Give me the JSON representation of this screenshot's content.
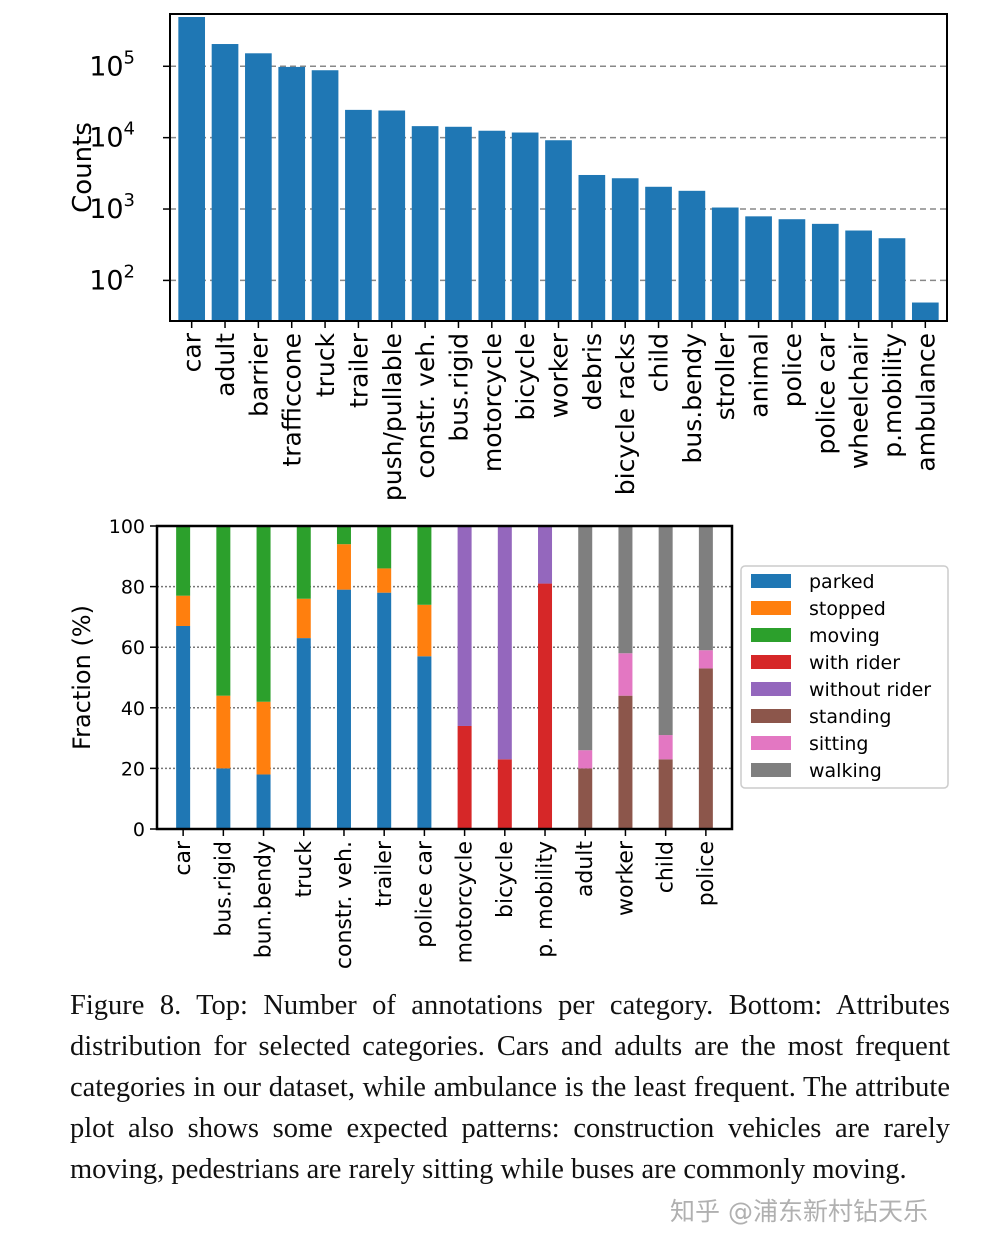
{
  "chart_data": [
    {
      "type": "bar",
      "yscale": "log",
      "ylabel": "Counts",
      "ylim": [
        27,
        540000
      ],
      "yticks": [
        {
          "value": 100,
          "base": "10",
          "exp": "2"
        },
        {
          "value": 1000,
          "base": "10",
          "exp": "3"
        },
        {
          "value": 10000,
          "base": "10",
          "exp": "4"
        },
        {
          "value": 100000,
          "base": "10",
          "exp": "5"
        }
      ],
      "grid": "horizontal dashed",
      "categories": [
        "car",
        "adult",
        "barrier",
        "trafficcone",
        "truck",
        "trailer",
        "push/pullable",
        "constr. veh.",
        "bus.rigid",
        "motorcycle",
        "bicycle",
        "worker",
        "debris",
        "bicycle racks",
        "child",
        "bus.bendy",
        "stroller",
        "animal",
        "police",
        "police car",
        "wheelchair",
        "p.mobility",
        "ambulance"
      ],
      "values": [
        490000,
        205000,
        152000,
        98000,
        88000,
        24500,
        24000,
        14500,
        14200,
        12500,
        11800,
        9200,
        3000,
        2700,
        2050,
        1800,
        1050,
        790,
        720,
        620,
        500,
        390,
        49
      ],
      "color": "#1f77b4"
    },
    {
      "type": "stacked_bar",
      "ylabel": "Fraction (%)",
      "ylim": [
        0,
        100
      ],
      "yticks": [
        "0",
        "20",
        "40",
        "60",
        "80",
        "100"
      ],
      "grid": "horizontal dotted",
      "categories": [
        "car",
        "bus.rigid",
        "bun.bendy",
        "truck",
        "constr. veh.",
        "trailer",
        "police car",
        "motorcycle",
        "bicycle",
        "p. mobility",
        "adult",
        "worker",
        "child",
        "police"
      ],
      "series": [
        {
          "name": "parked",
          "color": "#1f77b4",
          "values": [
            67,
            20,
            18,
            63,
            79,
            78,
            57,
            0,
            0,
            0,
            0,
            0,
            0,
            0
          ]
        },
        {
          "name": "stopped",
          "color": "#ff7f0e",
          "values": [
            10,
            24,
            24,
            13,
            15,
            8,
            17,
            0,
            0,
            0,
            0,
            0,
            0,
            0
          ]
        },
        {
          "name": "moving",
          "color": "#2ca02c",
          "values": [
            23,
            56,
            58,
            24,
            6,
            14,
            26,
            0,
            0,
            0,
            0,
            0,
            0,
            0
          ]
        },
        {
          "name": "with rider",
          "color": "#d62728",
          "values": [
            0,
            0,
            0,
            0,
            0,
            0,
            0,
            34,
            23,
            81,
            0,
            0,
            0,
            0
          ]
        },
        {
          "name": "without rider",
          "color": "#9467bd",
          "values": [
            0,
            0,
            0,
            0,
            0,
            0,
            0,
            66,
            77,
            19,
            0,
            0,
            0,
            0
          ]
        },
        {
          "name": "standing",
          "color": "#8c564b",
          "values": [
            0,
            0,
            0,
            0,
            0,
            0,
            0,
            0,
            0,
            0,
            20,
            44,
            23,
            53
          ]
        },
        {
          "name": "sitting",
          "color": "#e377c2",
          "values": [
            0,
            0,
            0,
            0,
            0,
            0,
            0,
            0,
            0,
            0,
            6,
            14,
            8,
            6
          ]
        },
        {
          "name": "walking",
          "color": "#7f7f7f",
          "values": [
            0,
            0,
            0,
            0,
            0,
            0,
            0,
            0,
            0,
            0,
            74,
            42,
            69,
            41
          ]
        }
      ],
      "legend": "right"
    }
  ],
  "caption": {
    "text": "Figure 8.   Top: Number of annotations per category.  Bottom: Attributes distribution for selected categories. Cars and adults are the most frequent categories in our dataset, while ambulance is the least frequent.  The attribute plot also shows some expected patterns: construction vehicles are rarely moving, pedestrians are rarely sitting while buses are commonly moving."
  },
  "watermark": "知乎 @浦东新村钻天乐"
}
